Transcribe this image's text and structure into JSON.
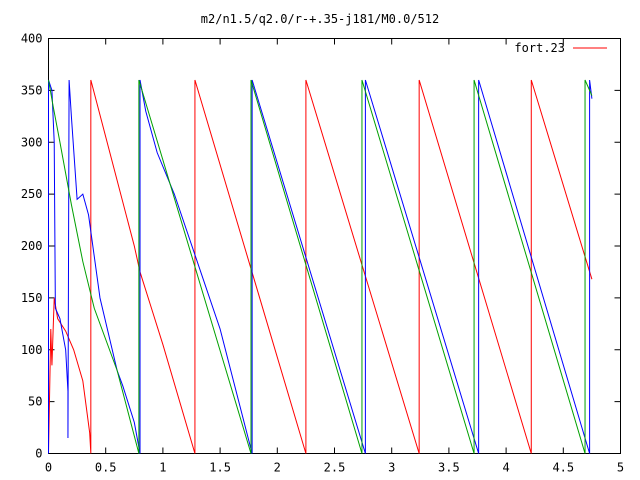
{
  "chart_data": {
    "type": "line",
    "title": "m2/n1.5/q2.0/r-+.35-j181/M0.0/512",
    "xlabel": "",
    "ylabel": "",
    "xlim": [
      0,
      5
    ],
    "ylim": [
      0,
      400
    ],
    "x_ticks": [
      0,
      0.5,
      1,
      1.5,
      2,
      2.5,
      3,
      3.5,
      4,
      4.5,
      5
    ],
    "x_tick_labels": [
      "0",
      "0.5",
      "1",
      "1.5",
      "2",
      "2.5",
      "3",
      "3.5",
      "4",
      "4.5",
      "5"
    ],
    "y_ticks": [
      0,
      50,
      100,
      150,
      200,
      250,
      300,
      350,
      400
    ],
    "y_tick_labels": [
      "0",
      "50",
      "100",
      "150",
      "200",
      "250",
      "300",
      "350",
      "400"
    ],
    "grid": false,
    "legend": {
      "position": "top-right",
      "entries": [
        {
          "label": "fort.23",
          "color": "#ff0000"
        }
      ]
    },
    "series": [
      {
        "color": "#ff0000",
        "points": [
          [
            0.0,
            0
          ],
          [
            0.02,
            120
          ],
          [
            0.03,
            85
          ],
          [
            0.05,
            150
          ],
          [
            0.08,
            130
          ],
          [
            0.15,
            118
          ],
          [
            0.22,
            100
          ],
          [
            0.3,
            70
          ],
          [
            0.36,
            20
          ],
          [
            0.37,
            0
          ],
          [
            0.37,
            360
          ],
          [
            0.75,
            200
          ],
          [
            0.8,
            175
          ],
          [
            0.9,
            140
          ],
          [
            1.0,
            105
          ],
          [
            1.28,
            0
          ],
          [
            1.28,
            360
          ],
          [
            2.25,
            0
          ],
          [
            2.25,
            360
          ],
          [
            3.24,
            0
          ],
          [
            3.24,
            360
          ],
          [
            4.22,
            0
          ],
          [
            4.22,
            360
          ],
          [
            4.75,
            168
          ]
        ]
      },
      {
        "color": "#0000ff",
        "points": [
          [
            0.0,
            0
          ],
          [
            0.0,
            360
          ],
          [
            0.03,
            350
          ],
          [
            0.05,
            300
          ],
          [
            0.06,
            140
          ],
          [
            0.1,
            130
          ],
          [
            0.15,
            100
          ],
          [
            0.17,
            60
          ],
          [
            0.17,
            15
          ],
          [
            0.18,
            360
          ],
          [
            0.2,
            325
          ],
          [
            0.25,
            245
          ],
          [
            0.3,
            250
          ],
          [
            0.35,
            230
          ],
          [
            0.45,
            150
          ],
          [
            0.6,
            80
          ],
          [
            0.65,
            65
          ],
          [
            0.75,
            30
          ],
          [
            0.8,
            0
          ],
          [
            0.8,
            360
          ],
          [
            0.85,
            330
          ],
          [
            0.95,
            290
          ],
          [
            1.1,
            250
          ],
          [
            1.3,
            185
          ],
          [
            1.5,
            120
          ],
          [
            1.78,
            0
          ],
          [
            1.78,
            360
          ],
          [
            2.77,
            0
          ],
          [
            2.77,
            360
          ],
          [
            3.76,
            0
          ],
          [
            3.76,
            360
          ],
          [
            4.73,
            0
          ],
          [
            4.73,
            360
          ],
          [
            4.75,
            342
          ]
        ]
      },
      {
        "color": "#00a000",
        "points": [
          [
            0.0,
            360
          ],
          [
            0.04,
            335
          ],
          [
            0.1,
            300
          ],
          [
            0.2,
            240
          ],
          [
            0.3,
            185
          ],
          [
            0.4,
            140
          ],
          [
            0.6,
            80
          ],
          [
            0.79,
            0
          ],
          [
            0.79,
            360
          ],
          [
            1.77,
            0
          ],
          [
            1.77,
            360
          ],
          [
            2.74,
            0
          ],
          [
            2.74,
            360
          ],
          [
            3.72,
            0
          ],
          [
            3.72,
            360
          ],
          [
            4.69,
            0
          ],
          [
            4.69,
            360
          ],
          [
            4.75,
            345
          ]
        ]
      }
    ]
  }
}
